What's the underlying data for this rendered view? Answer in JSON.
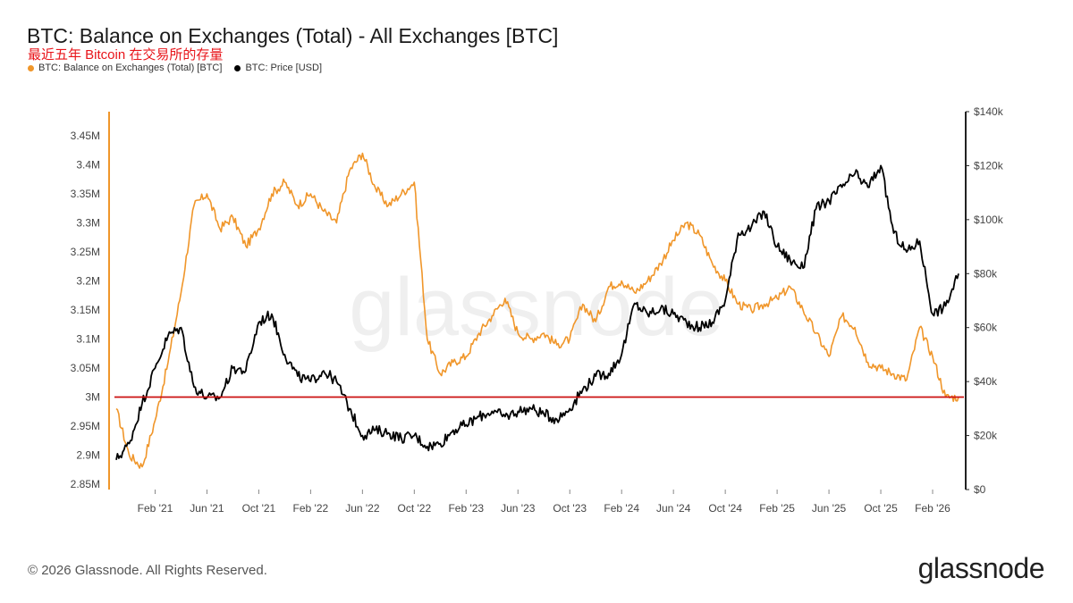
{
  "header": {
    "title": "BTC: Balance on Exchanges (Total) - All Exchanges [BTC]",
    "subtitle": "最近五年 Bitcoin 在交易所的存量"
  },
  "legend": [
    {
      "label": "BTC: Balance on Exchanges (Total) [BTC]",
      "color": "#f0962a"
    },
    {
      "label": "BTC: Price [USD]",
      "color": "#000000"
    }
  ],
  "footer": {
    "copyright": "© 2026 Glassnode. All Rights Reserved.",
    "brand": "glassnode"
  },
  "chart_data": {
    "type": "line",
    "watermark": "glassnode",
    "x_tick_labels": [
      "Feb '21",
      "Jun '21",
      "Oct '21",
      "Feb '22",
      "Jun '22",
      "Oct '22",
      "Feb '23",
      "Jun '23",
      "Oct '23",
      "Feb '24",
      "Jun '24",
      "Oct '24",
      "Feb '25",
      "Jun '25",
      "Oct '25",
      "Feb '26"
    ],
    "x_ticks": [
      "2021-02",
      "2021-06",
      "2021-10",
      "2022-02",
      "2022-06",
      "2022-10",
      "2023-02",
      "2023-06",
      "2023-10",
      "2024-02",
      "2024-06",
      "2024-10",
      "2025-02",
      "2025-06",
      "2025-10",
      "2026-02"
    ],
    "xlim": [
      "2020-11",
      "2026-04"
    ],
    "y_left": {
      "tick_labels": [
        "2.85M",
        "2.9M",
        "2.95M",
        "3M",
        "3.05M",
        "3.1M",
        "3.15M",
        "3.2M",
        "3.25M",
        "3.3M",
        "3.35M",
        "3.4M",
        "3.45M"
      ],
      "ylim": [
        2.85,
        3.45
      ],
      "units": "M BTC"
    },
    "y_right": {
      "tick_labels": [
        "$0",
        "$20k",
        "$40k",
        "$60k",
        "$80k",
        "$100k",
        "$120k",
        "$140k"
      ],
      "ylim": [
        0,
        140
      ],
      "units": "k USD"
    },
    "reference_line": {
      "value": 3.0,
      "axis": "left",
      "color": "#cc1111"
    },
    "series": [
      {
        "name": "BTC: Balance on Exchanges (Total) [BTC]",
        "axis": "left",
        "color": "#f0962a",
        "x": [
          "2020-11",
          "2020-12",
          "2021-01",
          "2021-02",
          "2021-03",
          "2021-04",
          "2021-05",
          "2021-06",
          "2021-07",
          "2021-08",
          "2021-09",
          "2021-10",
          "2021-11",
          "2021-12",
          "2022-01",
          "2022-02",
          "2022-03",
          "2022-04",
          "2022-05",
          "2022-06",
          "2022-07",
          "2022-08",
          "2022-09",
          "2022-10",
          "2022-11",
          "2022-12",
          "2023-01",
          "2023-02",
          "2023-03",
          "2023-04",
          "2023-05",
          "2023-06",
          "2023-07",
          "2023-08",
          "2023-09",
          "2023-10",
          "2023-11",
          "2023-12",
          "2024-01",
          "2024-02",
          "2024-03",
          "2024-04",
          "2024-05",
          "2024-06",
          "2024-07",
          "2024-08",
          "2024-09",
          "2024-10",
          "2024-11",
          "2024-12",
          "2025-01",
          "2025-02",
          "2025-03",
          "2025-04",
          "2025-05",
          "2025-06",
          "2025-07",
          "2025-08",
          "2025-09",
          "2025-10",
          "2025-11",
          "2025-12",
          "2026-01",
          "2026-02",
          "2026-03",
          "2026-04"
        ],
        "values": [
          2.98,
          2.9,
          2.88,
          2.96,
          3.06,
          3.18,
          3.33,
          3.35,
          3.29,
          3.31,
          3.26,
          3.29,
          3.35,
          3.37,
          3.33,
          3.35,
          3.32,
          3.3,
          3.39,
          3.42,
          3.36,
          3.33,
          3.35,
          3.37,
          3.1,
          3.04,
          3.06,
          3.07,
          3.11,
          3.14,
          3.17,
          3.11,
          3.1,
          3.11,
          3.09,
          3.1,
          3.16,
          3.13,
          3.19,
          3.2,
          3.18,
          3.2,
          3.23,
          3.27,
          3.3,
          3.28,
          3.23,
          3.2,
          3.16,
          3.15,
          3.16,
          3.17,
          3.19,
          3.15,
          3.11,
          3.07,
          3.14,
          3.12,
          3.06,
          3.05,
          3.04,
          3.03,
          3.12,
          3.07,
          3.0,
          3.0
        ]
      },
      {
        "name": "BTC: Price [USD]",
        "axis": "right",
        "color": "#000000",
        "x": [
          "2020-11",
          "2020-12",
          "2021-01",
          "2021-02",
          "2021-03",
          "2021-04",
          "2021-05",
          "2021-06",
          "2021-07",
          "2021-08",
          "2021-09",
          "2021-10",
          "2021-11",
          "2021-12",
          "2022-01",
          "2022-02",
          "2022-03",
          "2022-04",
          "2022-05",
          "2022-06",
          "2022-07",
          "2022-08",
          "2022-09",
          "2022-10",
          "2022-11",
          "2022-12",
          "2023-01",
          "2023-02",
          "2023-03",
          "2023-04",
          "2023-05",
          "2023-06",
          "2023-07",
          "2023-08",
          "2023-09",
          "2023-10",
          "2023-11",
          "2023-12",
          "2024-01",
          "2024-02",
          "2024-03",
          "2024-04",
          "2024-05",
          "2024-06",
          "2024-07",
          "2024-08",
          "2024-09",
          "2024-10",
          "2024-11",
          "2024-12",
          "2025-01",
          "2025-02",
          "2025-03",
          "2025-04",
          "2025-05",
          "2025-06",
          "2025-07",
          "2025-08",
          "2025-09",
          "2025-10",
          "2025-11",
          "2025-12",
          "2026-01",
          "2026-02",
          "2026-03",
          "2026-04"
        ],
        "values": [
          11,
          17,
          32,
          45,
          57,
          60,
          38,
          34,
          34,
          45,
          44,
          62,
          65,
          50,
          42,
          40,
          44,
          40,
          30,
          20,
          22,
          21,
          19,
          20,
          16,
          17,
          22,
          24,
          27,
          29,
          27,
          29,
          30,
          28,
          26,
          30,
          37,
          42,
          43,
          50,
          69,
          65,
          67,
          65,
          62,
          60,
          62,
          70,
          95,
          97,
          103,
          90,
          85,
          82,
          104,
          107,
          112,
          117,
          112,
          120,
          95,
          88,
          92,
          65,
          68,
          80
        ]
      }
    ]
  }
}
